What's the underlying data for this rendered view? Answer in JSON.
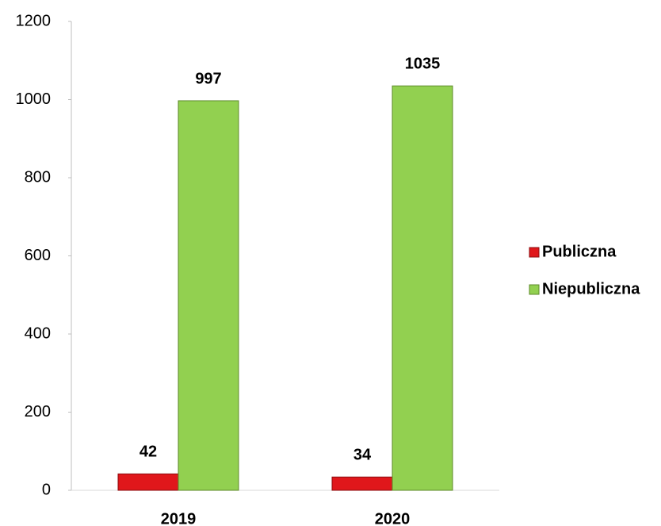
{
  "chart_data": {
    "type": "bar",
    "categories": [
      "2019",
      "2020"
    ],
    "series": [
      {
        "name": "Publiczna",
        "color": "#e0171b",
        "values": [
          42,
          34
        ]
      },
      {
        "name": "Niepubliczna",
        "color": "#92d050",
        "values": [
          997,
          1035
        ]
      }
    ],
    "ylim": [
      0,
      1200
    ],
    "yticks": [
      0,
      200,
      400,
      600,
      800,
      1000,
      1200
    ],
    "grid": false,
    "legend": "right",
    "data_labels": true
  }
}
